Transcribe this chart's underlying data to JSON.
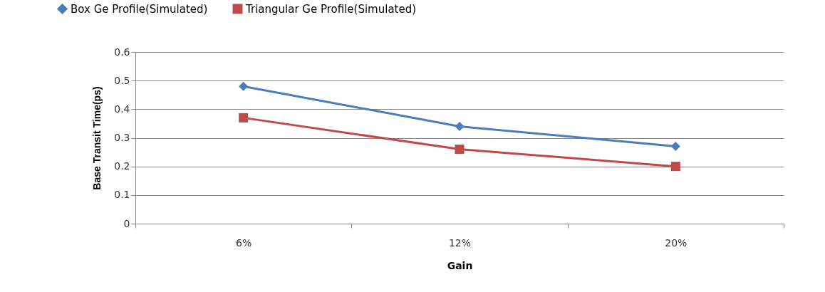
{
  "chart_data": {
    "type": "line",
    "xlabel": "Gain",
    "ylabel": "Base Transit Time(ps)",
    "categories": [
      "6%",
      "12%",
      "20%"
    ],
    "series": [
      {
        "name": "Box Ge Profile(Simulated)",
        "color": "#4a7ebb",
        "marker": "diamond",
        "values": [
          0.48,
          0.34,
          0.27
        ]
      },
      {
        "name": "Triangular Ge Profile(Simulated)",
        "color": "#be4b48",
        "marker": "square",
        "values": [
          0.37,
          0.26,
          0.2
        ]
      }
    ],
    "ylim": [
      0,
      0.6
    ],
    "yticks": [
      0,
      0.1,
      0.2,
      0.3,
      0.4,
      0.5,
      0.6
    ],
    "grid": "y",
    "legend": "top",
    "line_style": "solid"
  }
}
